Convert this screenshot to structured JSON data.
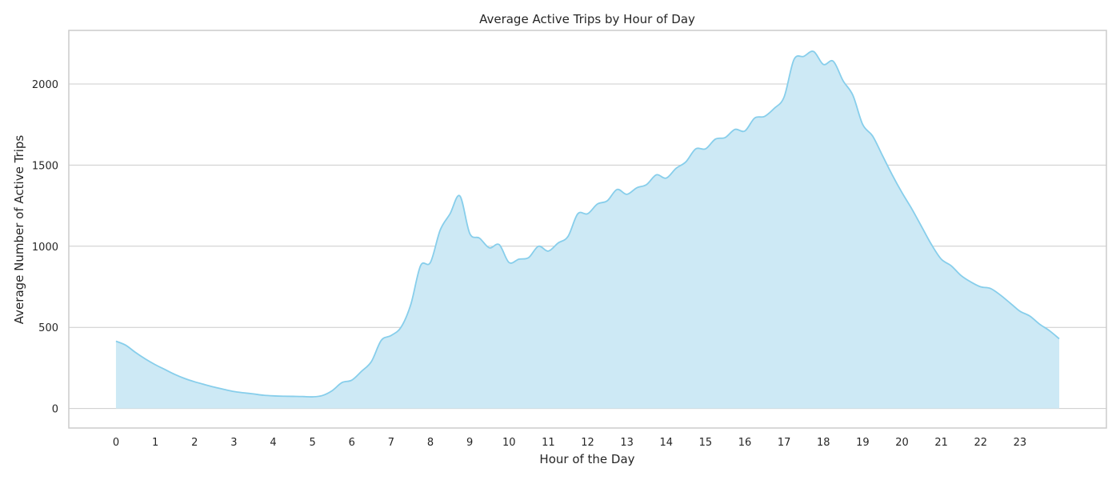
{
  "chart_data": {
    "type": "area",
    "title": "Average Active Trips by Hour of Day",
    "xlabel": "Hour of the Day",
    "ylabel": "Average Number of Active Trips",
    "xlim": [
      -1.2,
      25.2
    ],
    "ylim": [
      -120,
      2330
    ],
    "xticks": [
      0,
      1,
      2,
      3,
      4,
      5,
      6,
      7,
      8,
      9,
      10,
      11,
      12,
      13,
      14,
      15,
      16,
      17,
      18,
      19,
      20,
      21,
      22,
      23
    ],
    "xtick_labels": [
      "0",
      "1",
      "2",
      "3",
      "4",
      "5",
      "6",
      "7",
      "8",
      "9",
      "10",
      "11",
      "12",
      "13",
      "14",
      "15",
      "16",
      "17",
      "18",
      "19",
      "20",
      "21",
      "22",
      "23"
    ],
    "yticks": [
      0,
      500,
      1000,
      1500,
      2000
    ],
    "ytick_labels": [
      "0",
      "500",
      "1000",
      "1500",
      "2000"
    ],
    "grid": "horizontal",
    "series": [
      {
        "color": "#87ceeb",
        "fill_color": "#cde9f5",
        "x": [
          0,
          0.25,
          0.5,
          0.75,
          1,
          1.25,
          1.5,
          1.75,
          2,
          2.25,
          2.5,
          2.75,
          3,
          3.25,
          3.5,
          3.75,
          4,
          4.25,
          4.5,
          4.75,
          5,
          5.25,
          5.5,
          5.75,
          6,
          6.25,
          6.5,
          6.75,
          7,
          7.25,
          7.5,
          7.75,
          8,
          8.25,
          8.5,
          8.75,
          9,
          9.25,
          9.5,
          9.75,
          10,
          10.25,
          10.5,
          10.75,
          11,
          11.25,
          11.5,
          11.75,
          12,
          12.25,
          12.5,
          12.75,
          13,
          13.25,
          13.5,
          13.75,
          14,
          14.25,
          14.5,
          14.75,
          15,
          15.25,
          15.5,
          15.75,
          16,
          16.25,
          16.5,
          16.75,
          17,
          17.25,
          17.5,
          17.75,
          18,
          18.25,
          18.5,
          18.75,
          19,
          19.25,
          19.5,
          19.75,
          20,
          20.25,
          20.5,
          20.75,
          21,
          21.25,
          21.5,
          21.75,
          22,
          22.25,
          22.5,
          22.75,
          23,
          23.25,
          23.5,
          23.75,
          24
        ],
        "values": [
          415,
          390,
          345,
          305,
          270,
          240,
          210,
          185,
          165,
          148,
          132,
          118,
          105,
          97,
          90,
          82,
          78,
          76,
          75,
          74,
          72,
          80,
          110,
          160,
          175,
          230,
          290,
          420,
          450,
          500,
          640,
          880,
          900,
          1100,
          1200,
          1310,
          1080,
          1050,
          990,
          1010,
          900,
          920,
          930,
          1000,
          970,
          1020,
          1060,
          1200,
          1200,
          1260,
          1280,
          1350,
          1320,
          1360,
          1380,
          1440,
          1420,
          1480,
          1520,
          1600,
          1600,
          1660,
          1670,
          1720,
          1710,
          1790,
          1800,
          1850,
          1920,
          2150,
          2170,
          2200,
          2120,
          2140,
          2020,
          1930,
          1750,
          1680,
          1560,
          1440,
          1330,
          1230,
          1120,
          1010,
          920,
          880,
          820,
          780,
          750,
          740,
          700,
          650,
          600,
          570,
          520,
          480,
          430
        ]
      }
    ]
  }
}
